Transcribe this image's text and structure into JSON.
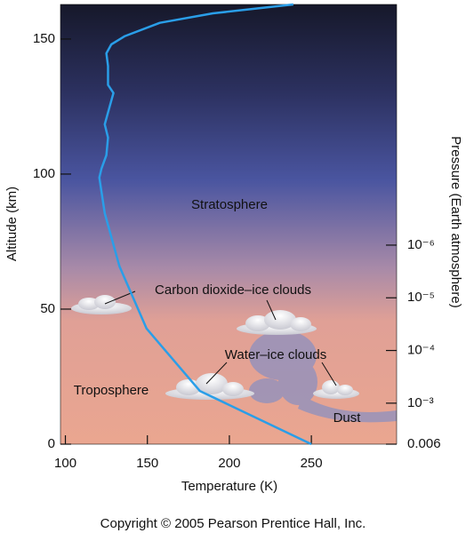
{
  "chart_data": {
    "type": "line",
    "x_label": "Temperature (K)",
    "y_label": "Altitude (km)",
    "y2_label": "Pressure (Earth atmosphere)",
    "x": [
      250,
      182,
      149.5,
      133,
      124,
      120.7,
      122,
      125,
      126,
      124,
      127,
      129.3,
      126,
      126,
      125,
      128,
      136,
      157.6,
      190,
      239
    ],
    "series": [
      {
        "color": "#2a9ee8",
        "values": [
          0,
          19.7,
          42.8,
          65.8,
          85.5,
          98.7,
          102,
          107,
          113.5,
          118.4,
          125,
          130,
          133,
          140,
          144.7,
          148,
          151,
          156,
          159.5,
          162.8
        ]
      }
    ],
    "xlim": [
      97,
      302
    ],
    "xticks": [
      100,
      150,
      200,
      250
    ],
    "ylim": [
      0,
      162.8
    ],
    "yticks": [
      0,
      50,
      100,
      150
    ],
    "y2scale": "log",
    "y2lim": [
      0.006,
      2.7e-11
    ],
    "y2ticks": [
      0.006,
      {
        "value": 0.001,
        "label": "10⁻³"
      },
      {
        "value": 0.0001,
        "label": "10⁻⁴"
      },
      {
        "value": 1e-05,
        "label": "10⁻⁵"
      },
      {
        "value": 1e-06,
        "label": "10⁻⁶"
      }
    ],
    "annotations": [
      "Stratosphere",
      "Troposphere",
      "Carbon dioxide–ice clouds",
      "Water–ice clouds",
      "Dust"
    ],
    "copyright": "Copyright © 2005 Pearson Prentice Hall, Inc."
  }
}
